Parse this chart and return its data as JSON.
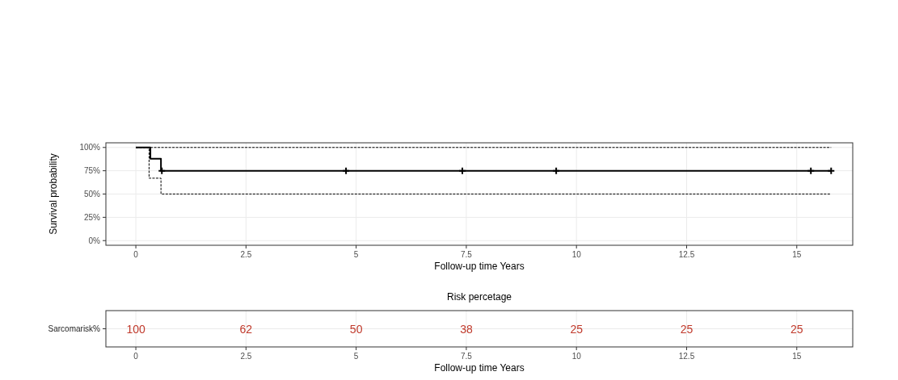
{
  "chart_data": [
    {
      "type": "step",
      "xlabel": "Follow-up time Years",
      "ylabel": "Survival probability",
      "xlim": [
        -0.68,
        16.27
      ],
      "xticks": [
        0,
        2.5,
        5,
        7.5,
        10,
        12.5,
        15
      ],
      "ylim": [
        -5,
        105
      ],
      "yticks": [
        {
          "value": 0,
          "label": "0%"
        },
        {
          "value": 25,
          "label": "25%"
        },
        {
          "value": 50,
          "label": "50%"
        },
        {
          "value": 75,
          "label": "75%"
        },
        {
          "value": 100,
          "label": "100%"
        }
      ],
      "grid": true,
      "series": [
        {
          "color": "#000000",
          "line_style": "solid",
          "x": [
            0,
            0.33,
            0.57,
            15.78
          ],
          "values": [
            100,
            88,
            75,
            75
          ]
        },
        {
          "color": "#000000",
          "line_style": "dashed",
          "x": [
            0,
            15.78
          ],
          "values": [
            100,
            100
          ]
        },
        {
          "color": "#000000",
          "line_style": "dashed",
          "x": [
            0,
            0.3,
            0.57,
            15.78
          ],
          "values": [
            100,
            67,
            50,
            50
          ]
        },
        {
          "type": "scatter",
          "color": "#000000",
          "marker": "cross",
          "x": [
            0.59,
            4.77,
            7.41,
            9.54,
            15.32,
            15.78
          ],
          "values": [
            75,
            75,
            75,
            75,
            75,
            75
          ]
        }
      ]
    },
    {
      "type": "heatmap",
      "title": "Risk percetage",
      "xlabel": "Follow-up time Years",
      "xlim": [
        -0.68,
        16.27
      ],
      "xticks": [
        0,
        2.5,
        5,
        7.5,
        10,
        12.5,
        15
      ],
      "x": [
        0,
        2.5,
        5,
        7.5,
        10,
        12.5,
        15
      ],
      "y_categories": [
        "Sarcomarisk%"
      ],
      "cells": [
        [
          100,
          62,
          50,
          38,
          25,
          25,
          25
        ]
      ],
      "data_labels": true,
      "color": "#c0392b",
      "grid": true
    }
  ]
}
